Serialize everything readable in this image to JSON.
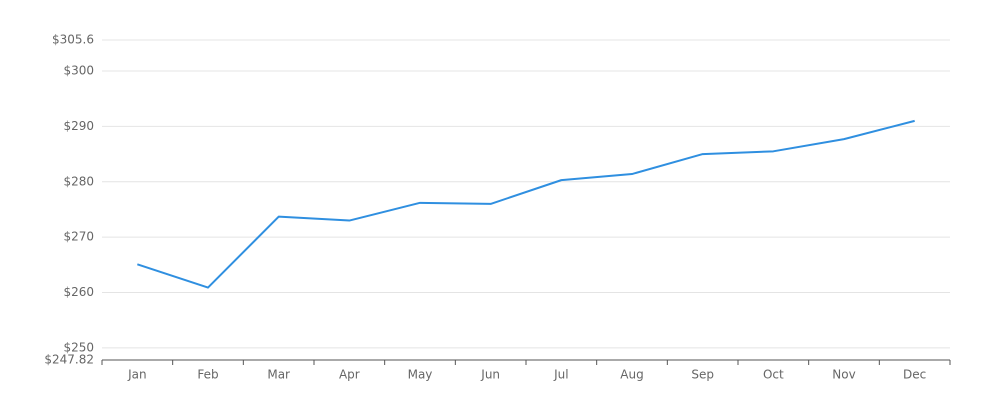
{
  "chart_data": {
    "type": "line",
    "categories": [
      "Jan",
      "Feb",
      "Mar",
      "Apr",
      "May",
      "Jun",
      "Jul",
      "Aug",
      "Sep",
      "Oct",
      "Nov",
      "Dec"
    ],
    "series": [
      {
        "color": "#2f8fe0",
        "values": [
          265.1,
          260.9,
          273.7,
          273.0,
          276.2,
          276.0,
          280.3,
          281.4,
          285.0,
          285.5,
          287.7,
          291.0
        ]
      }
    ],
    "ylim": [
      247.82,
      305.6
    ],
    "yticks": [
      {
        "value": 247.82,
        "label": "$247.82"
      },
      {
        "value": 250,
        "label": "$250"
      },
      {
        "value": 260,
        "label": "$260"
      },
      {
        "value": 270,
        "label": "$270"
      },
      {
        "value": 280,
        "label": "$280"
      },
      {
        "value": 290,
        "label": "$290"
      },
      {
        "value": 300,
        "label": "$300"
      },
      {
        "value": 305.6,
        "label": "$305.6"
      }
    ],
    "grid": true
  }
}
